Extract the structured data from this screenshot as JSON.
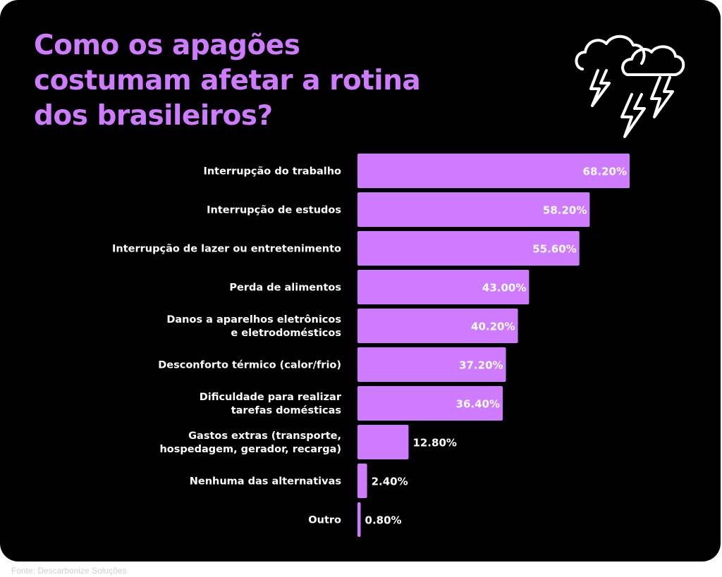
{
  "title": "Como os apagões costumam afetar a rotina dos brasileiros?",
  "source": "Fonte: Descarbonize Soluções",
  "icon": "thunderstorm-clouds-icon",
  "colors": {
    "background": "#000000",
    "accent": "#cf7bff",
    "bar": "#cf7bff",
    "label_text": "#ffffff"
  },
  "chart_data": {
    "type": "bar",
    "orientation": "horizontal",
    "title": "Como os apagões costumam afetar a rotina dos brasileiros?",
    "categories": [
      [
        "Interrupção do trabalho"
      ],
      [
        "Interrupção de estudos"
      ],
      [
        "Interrupção de lazer ou entretenimento"
      ],
      [
        "Perda de alimentos"
      ],
      [
        "Danos a aparelhos eletrônicos",
        "e eletrodomésticos"
      ],
      [
        "Desconforto térmico (calor/frio)"
      ],
      [
        "Dificuldade para realizar",
        "tarefas domésticas"
      ],
      [
        "Gastos extras (transporte,",
        "hospedagem, gerador, recarga)"
      ],
      [
        "Nenhuma das alternativas"
      ],
      [
        "Outro"
      ]
    ],
    "values": [
      68.2,
      58.2,
      55.6,
      43.0,
      40.2,
      37.2,
      36.4,
      12.8,
      2.4,
      0.8
    ],
    "value_labels": [
      "68.20%",
      "58.20%",
      "55.60%",
      "43.00%",
      "40.20%",
      "37.20%",
      "36.40%",
      "12.80%",
      "2.40%",
      "0.80%"
    ],
    "unit": "%",
    "xlim": [
      0,
      100
    ],
    "grid": false,
    "legend": "none"
  }
}
